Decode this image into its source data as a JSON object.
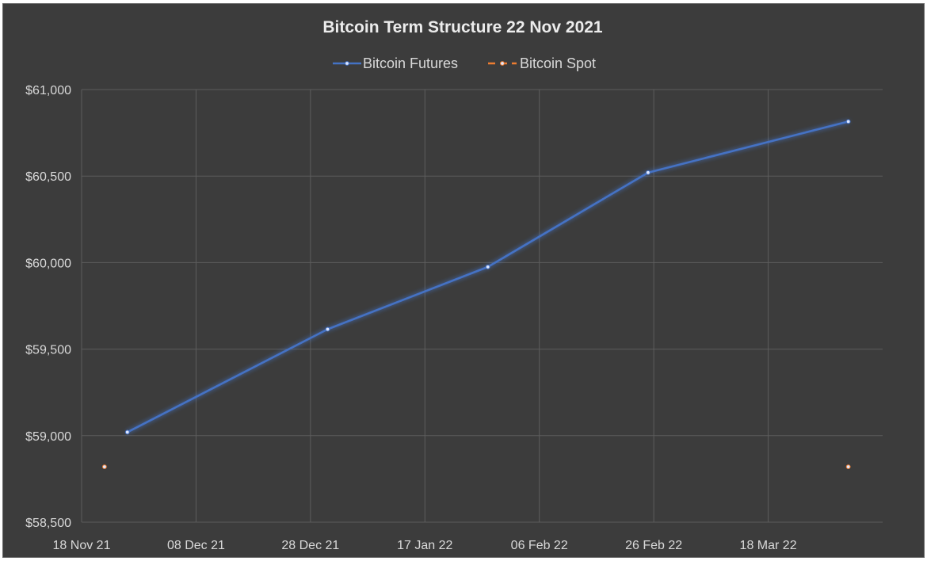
{
  "chart_data": {
    "type": "line",
    "title": "Bitcoin Term Structure 22 Nov 2021",
    "legend_position": "top",
    "grid": true,
    "ylim": [
      58500,
      61000
    ],
    "xlim": [
      "2021-11-18",
      "2022-04-07"
    ],
    "y_ticks": [
      58500,
      59000,
      59500,
      60000,
      60500,
      61000
    ],
    "y_tick_labels": [
      "$58,500",
      "$59,000",
      "$59,500",
      "$60,000",
      "$60,500",
      "$61,000"
    ],
    "x_ticks": [
      "2021-11-18",
      "2021-12-08",
      "2021-12-28",
      "2022-01-17",
      "2022-02-06",
      "2022-02-26",
      "2022-03-18"
    ],
    "x_tick_labels": [
      "18 Nov 21",
      "08 Dec 21",
      "28 Dec 21",
      "17 Jan 22",
      "06 Feb 22",
      "26 Feb 22",
      "18 Mar 22"
    ],
    "series": [
      {
        "name": "Bitcoin Futures",
        "color": "#4472c4",
        "style": "solid",
        "points": [
          {
            "x": "2021-11-26",
            "y": 59020
          },
          {
            "x": "2021-12-31",
            "y": 59615
          },
          {
            "x": "2022-01-28",
            "y": 59975
          },
          {
            "x": "2022-02-25",
            "y": 60520
          },
          {
            "x": "2022-04-01",
            "y": 60815
          }
        ]
      },
      {
        "name": "Bitcoin Spot",
        "color": "#ed7d31",
        "style": "dashed",
        "points": [
          {
            "x": "2021-11-22",
            "y": 58820
          },
          {
            "x": "2022-04-01",
            "y": 58820
          }
        ]
      }
    ]
  }
}
